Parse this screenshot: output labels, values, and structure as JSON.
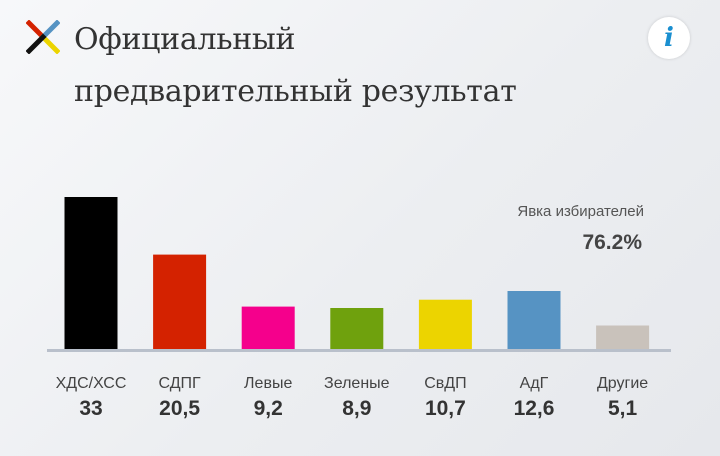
{
  "header": {
    "title_line1": "Официальный",
    "title_line2": "предварительный результат",
    "logo_icon": "cross-logo-icon",
    "info_icon": "info-icon",
    "info_glyph": "i"
  },
  "turnout": {
    "label": "Явка избирателей",
    "value": "76.2%"
  },
  "colors": {
    "baseline": "#b9c0cb",
    "label_text": "#444444",
    "value_text": "#333333"
  },
  "chart_data": {
    "type": "bar",
    "categories": [
      "ХДС/ХСС",
      "СДПГ",
      "Левые",
      "Зеленые",
      "СвДП",
      "АдГ",
      "Другие"
    ],
    "values": [
      33,
      20.5,
      9.2,
      8.9,
      10.7,
      12.6,
      5.1
    ],
    "value_labels": [
      "33",
      "20,5",
      "9,2",
      "8,9",
      "10,7",
      "12,6",
      "5,1"
    ],
    "colors": [
      "#000000",
      "#d42200",
      "#f5008c",
      "#6fa10d",
      "#ecd400",
      "#5693c3",
      "#c9c2bb"
    ],
    "ylim": [
      0,
      33
    ],
    "grid": false,
    "legend": "none"
  }
}
